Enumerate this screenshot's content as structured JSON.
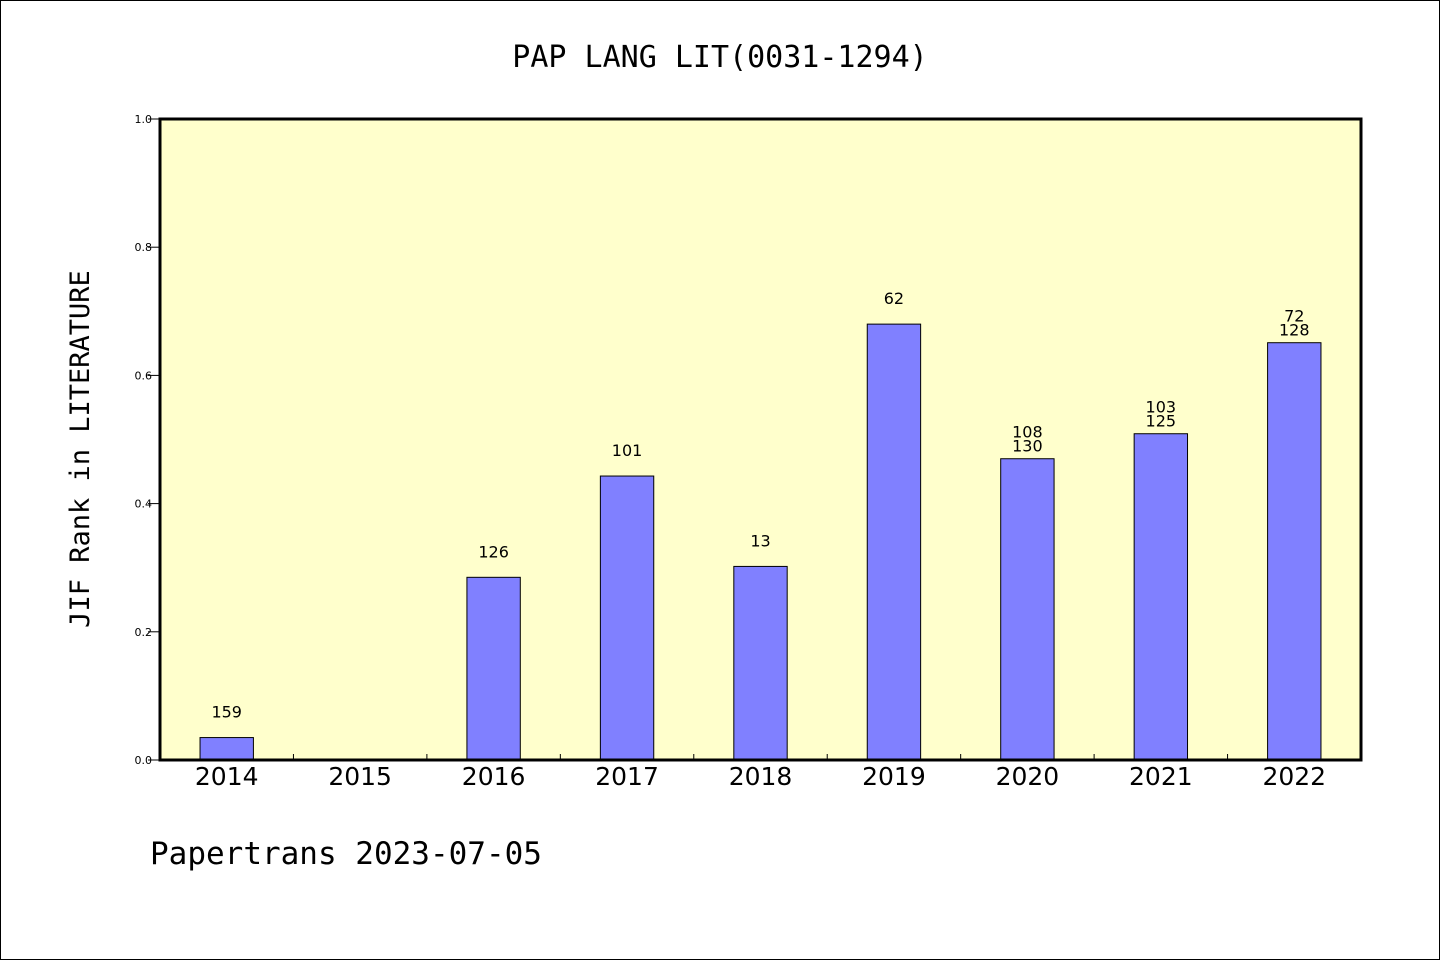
{
  "chart_data": {
    "type": "bar",
    "title": "PAP LANG LIT(0031-1294)",
    "ylabel": "JIF Rank in LITERATURE",
    "xlabel": "",
    "ylim": [
      0,
      1.0
    ],
    "yticks": [
      "0.0",
      "0.2",
      "0.4",
      "0.6",
      "0.8",
      "1.0"
    ],
    "categories": [
      "2014",
      "2015",
      "2016",
      "2017",
      "2018",
      "2019",
      "2020",
      "2021",
      "2022"
    ],
    "values": [
      0.035,
      null,
      0.285,
      0.443,
      0.302,
      0.68,
      0.47,
      0.509,
      0.651
    ],
    "bar_labels": [
      [
        "159"
      ],
      [],
      [
        "126"
      ],
      [
        "101"
      ],
      [
        "13"
      ],
      [
        "62"
      ],
      [
        "108",
        "130"
      ],
      [
        "103",
        "125"
      ],
      [
        "72",
        "128"
      ]
    ],
    "grid": false,
    "colors": {
      "plot_background": "#ffffcc",
      "bar_fill": "#8080ff",
      "bar_stroke": "#000000"
    }
  },
  "footer": {
    "text": "Papertrans 2023-07-05"
  }
}
